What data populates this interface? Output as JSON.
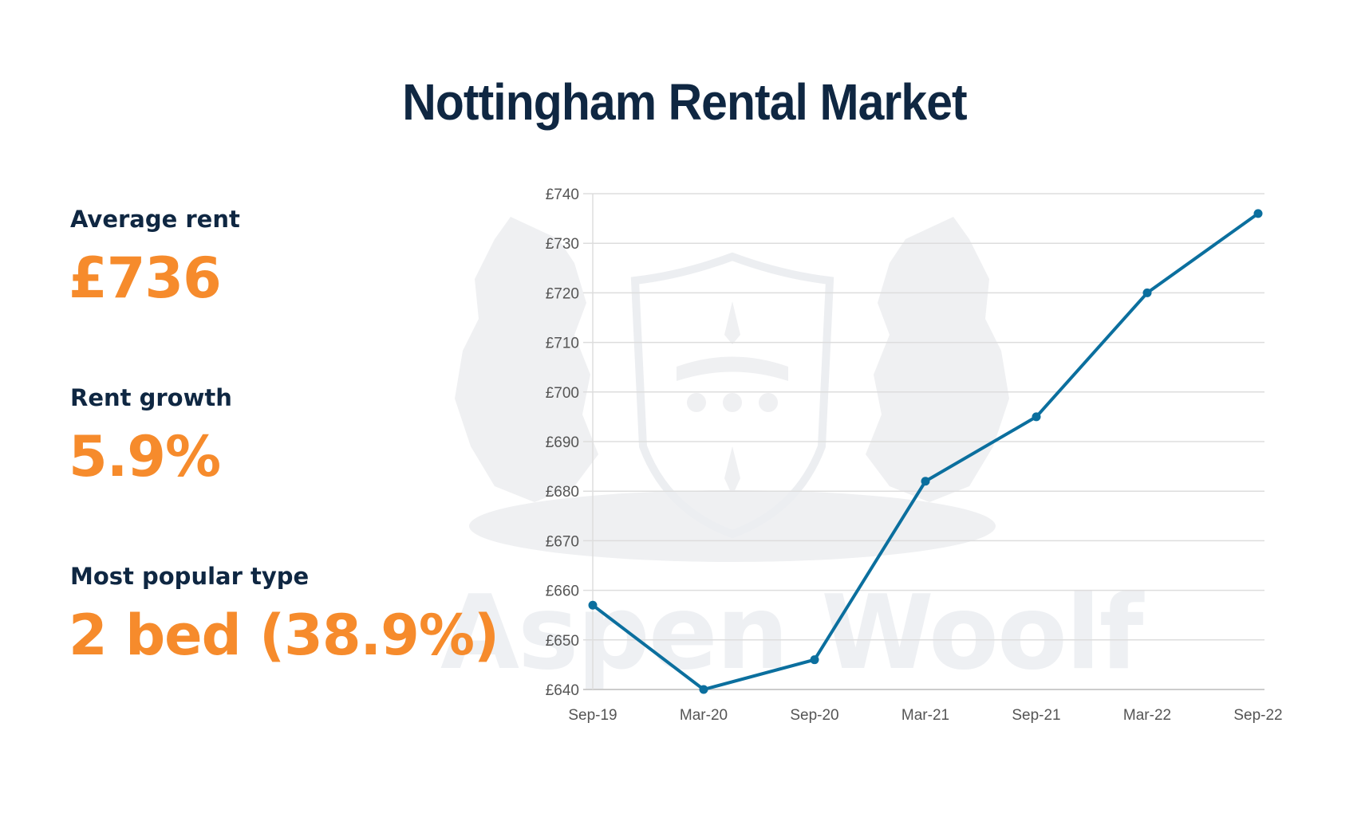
{
  "title": "Nottingham Rental Market",
  "stats": [
    {
      "label": "Average rent",
      "value": "£736"
    },
    {
      "label": "Rent growth",
      "value": "5.9%"
    },
    {
      "label": "Most popular type",
      "value": "2 bed (38.9%)"
    }
  ],
  "watermark": {
    "text": "Aspen Woolf"
  },
  "colors": {
    "title": "#0f2742",
    "accent": "#f68b2c",
    "line": "#0b6f9e",
    "grid": "#dddddd",
    "tick_text": "#555555"
  },
  "chart_data": {
    "type": "line",
    "title": "",
    "xlabel": "",
    "ylabel": "",
    "categories": [
      "Sep-19",
      "Mar-20",
      "Sep-20",
      "Mar-21",
      "Sep-21",
      "Mar-22",
      "Sep-22"
    ],
    "series": [
      {
        "name": "Average rent",
        "values": [
          657,
          640,
          646,
          682,
          695,
          720,
          736
        ]
      }
    ],
    "ylim": [
      640,
      740
    ],
    "yticks": [
      "£640",
      "£650",
      "£660",
      "£670",
      "£680",
      "£690",
      "£700",
      "£710",
      "£720",
      "£730",
      "£740"
    ],
    "grid": true,
    "legend": "none"
  }
}
